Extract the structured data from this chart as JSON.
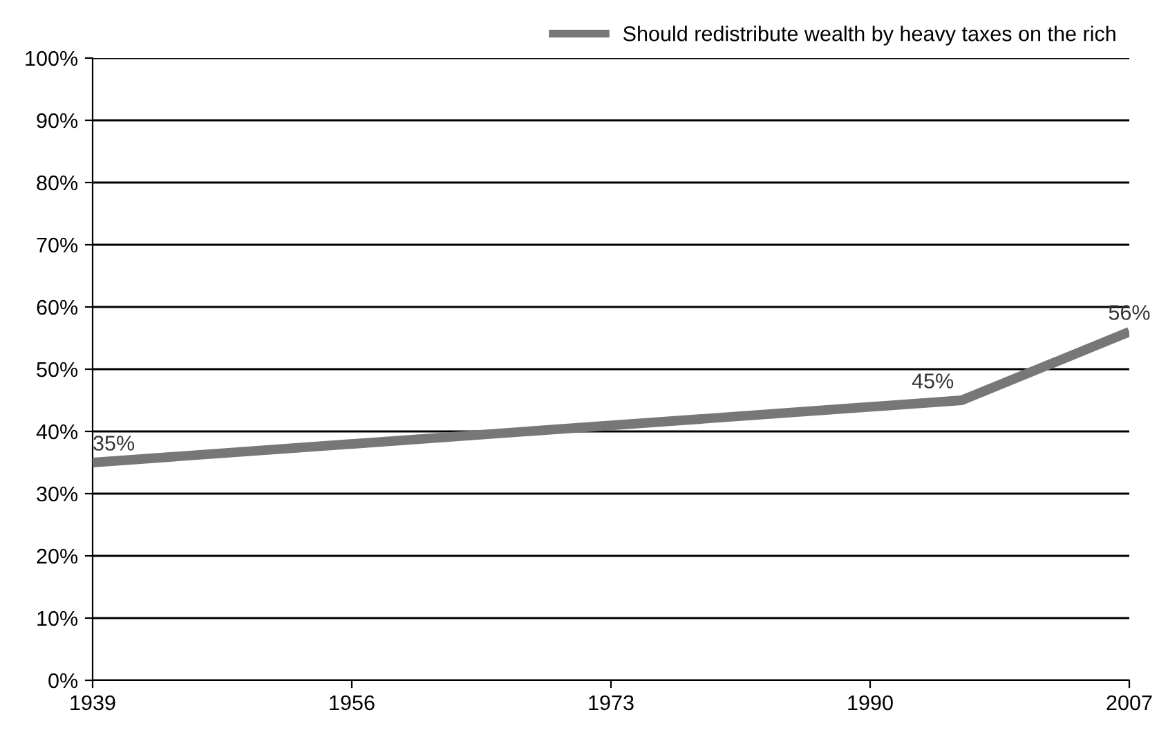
{
  "chart_data": {
    "type": "line",
    "x": [
      1939,
      1996,
      2007
    ],
    "series": [
      {
        "name": "Should redistribute wealth by heavy taxes on the rich",
        "color": "#777777",
        "values": [
          35,
          45,
          56
        ],
        "value_labels": [
          "35%",
          "45%",
          "56%"
        ]
      }
    ],
    "xlim": [
      1939,
      2007
    ],
    "xticks": [
      1939,
      1956,
      1973,
      1990,
      2007
    ],
    "ylim": [
      0,
      100
    ],
    "yticks": [
      {
        "value": 0,
        "label": "0%"
      },
      {
        "value": 10,
        "label": "10%"
      },
      {
        "value": 20,
        "label": "20%"
      },
      {
        "value": 30,
        "label": "30%"
      },
      {
        "value": 40,
        "label": "40%"
      },
      {
        "value": 50,
        "label": "50%"
      },
      {
        "value": 60,
        "label": "60%"
      },
      {
        "value": 70,
        "label": "70%"
      },
      {
        "value": 80,
        "label": "80%"
      },
      {
        "value": 90,
        "label": "90%"
      },
      {
        "value": 100,
        "label": "100%"
      }
    ],
    "grid": "y",
    "legend": "top right",
    "marker": "none",
    "line_style": "solid"
  }
}
